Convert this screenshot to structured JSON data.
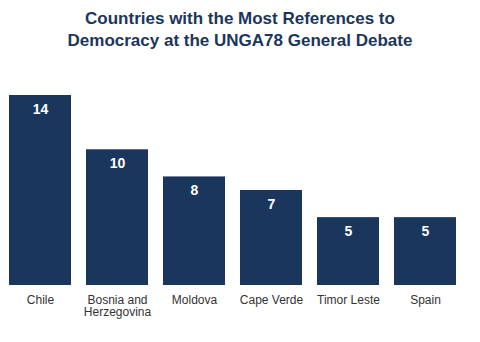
{
  "chart_data": {
    "type": "bar",
    "title": "Countries with the Most References to Democracy at the UNGA78 General Debate",
    "categories": [
      "Chile",
      "Bosnia and Herzegovina",
      "Moldova",
      "Cape Verde",
      "Timor Leste",
      "Spain"
    ],
    "values": [
      14,
      10,
      8,
      7,
      5,
      5
    ],
    "color": "#1b365d",
    "ylim": [
      0,
      14
    ],
    "data_labels": true,
    "tick_labels": "x"
  }
}
